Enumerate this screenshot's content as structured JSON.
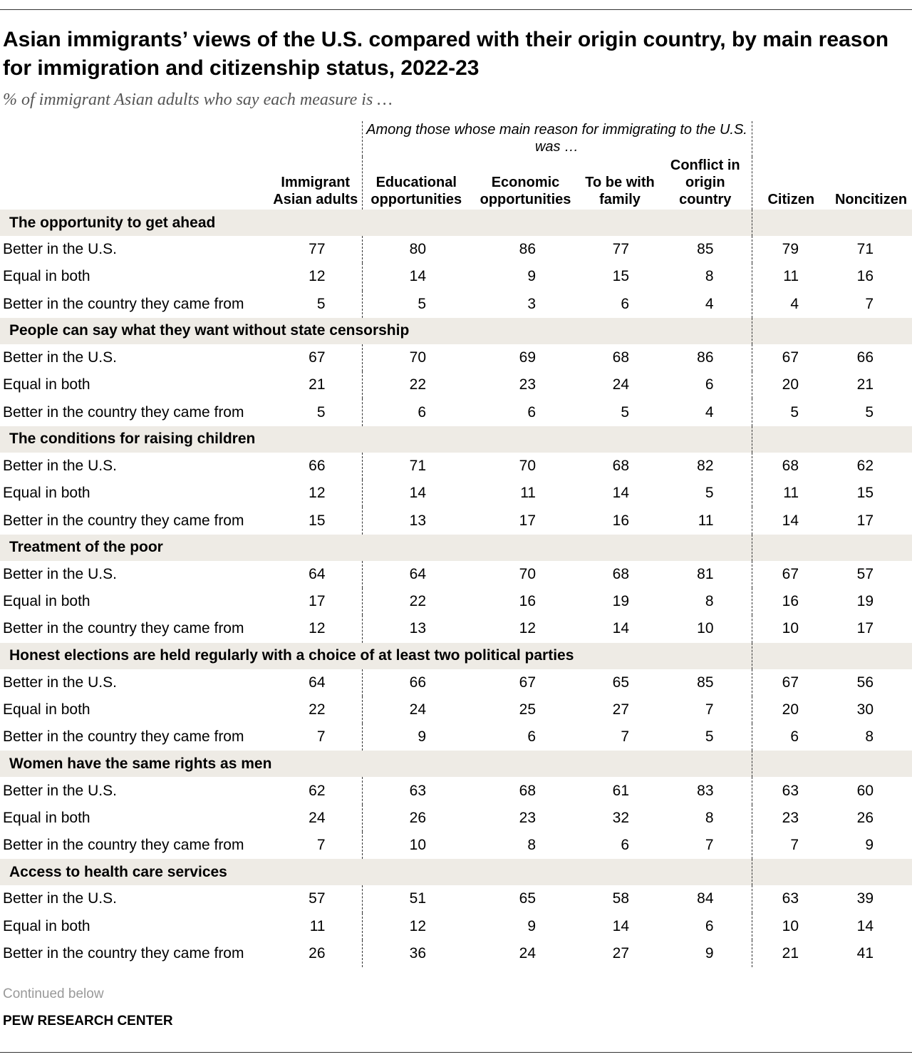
{
  "title": "Asian immigrants’ views of the U.S. compared with their origin country, by main reason for immigration and citizenship status, 2022-23",
  "subtitle": "% of immigrant Asian adults who say each measure is …",
  "group_label": "Among those whose main reason for immigrating to the U.S. was …",
  "note": "Continued below",
  "source": "PEW RESEARCH CENTER",
  "chart_data": {
    "type": "table",
    "columns": [
      "Immigrant Asian adults",
      "Educational opportunities",
      "Economic opportunities",
      "To be with family",
      "Conflict in origin country",
      "Citizen",
      "Noncitizen"
    ],
    "row_labels": [
      "Better in the U.S.",
      "Equal in both",
      "Better in the country they came from"
    ],
    "sections": [
      {
        "title": "The opportunity to get ahead",
        "rows": [
          [
            77,
            80,
            86,
            77,
            85,
            79,
            71
          ],
          [
            12,
            14,
            9,
            15,
            8,
            11,
            16
          ],
          [
            5,
            5,
            3,
            6,
            4,
            4,
            7
          ]
        ]
      },
      {
        "title": "People can say what they want without state censorship",
        "rows": [
          [
            67,
            70,
            69,
            68,
            86,
            67,
            66
          ],
          [
            21,
            22,
            23,
            24,
            6,
            20,
            21
          ],
          [
            5,
            6,
            6,
            5,
            4,
            5,
            5
          ]
        ]
      },
      {
        "title": "The conditions for raising children",
        "rows": [
          [
            66,
            71,
            70,
            68,
            82,
            68,
            62
          ],
          [
            12,
            14,
            11,
            14,
            5,
            11,
            15
          ],
          [
            15,
            13,
            17,
            16,
            11,
            14,
            17
          ]
        ]
      },
      {
        "title": "Treatment of the poor",
        "rows": [
          [
            64,
            64,
            70,
            68,
            81,
            67,
            57
          ],
          [
            17,
            22,
            16,
            19,
            8,
            16,
            19
          ],
          [
            12,
            13,
            12,
            14,
            10,
            10,
            17
          ]
        ]
      },
      {
        "title": "Honest elections are held regularly with a choice of at least two political parties",
        "rows": [
          [
            64,
            66,
            67,
            65,
            85,
            67,
            56
          ],
          [
            22,
            24,
            25,
            27,
            7,
            20,
            30
          ],
          [
            7,
            9,
            6,
            7,
            5,
            6,
            8
          ]
        ]
      },
      {
        "title": "Women have the same rights as men",
        "rows": [
          [
            62,
            63,
            68,
            61,
            83,
            63,
            60
          ],
          [
            24,
            26,
            23,
            32,
            8,
            23,
            26
          ],
          [
            7,
            10,
            8,
            6,
            7,
            7,
            9
          ]
        ]
      },
      {
        "title": "Access to health care services",
        "rows": [
          [
            57,
            51,
            65,
            58,
            84,
            63,
            39
          ],
          [
            11,
            12,
            9,
            14,
            6,
            10,
            14
          ],
          [
            26,
            36,
            24,
            27,
            9,
            21,
            41
          ]
        ]
      }
    ]
  }
}
